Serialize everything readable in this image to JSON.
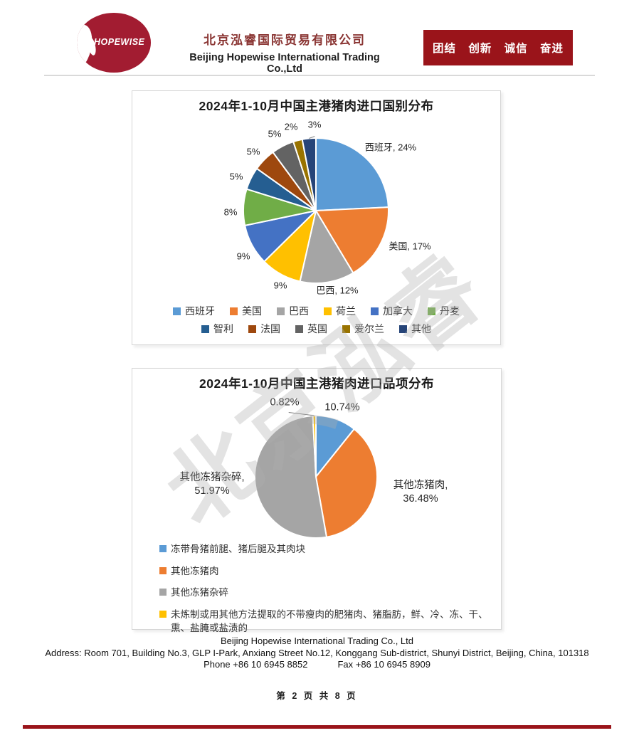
{
  "header": {
    "logo_text": "HOPEWISE",
    "logo_color": "#A21C31",
    "company_name_zh": "北京泓睿国际贸易有限公司",
    "company_name_en": "Beijing Hopewise International Trading Co.,Ltd",
    "slogan": "团结 创新 诚信 奋进",
    "slogan_color": "#9A141A"
  },
  "watermark": {
    "text": "北京泓睿"
  },
  "chart_data": [
    {
      "type": "pie",
      "title": "2024年1-10月中国主港猪肉进口国别分布",
      "unit": "%",
      "legend_position": "bottom",
      "legend_rows": [
        [
          "西班牙",
          "美国",
          "巴西",
          "荷兰",
          "加拿大",
          "丹麦"
        ],
        [
          "智利",
          "法国",
          "英国",
          "爱尔兰",
          "其他"
        ]
      ],
      "slices": [
        {
          "name": "西班牙",
          "value": 24,
          "color": "#5B9BD5",
          "label": "西班牙, 24%",
          "label_pos": [
            105,
            -88
          ]
        },
        {
          "name": "美国",
          "value": 17,
          "color": "#ED7D31",
          "label": "美国, 17%",
          "label_pos": [
            132,
            51
          ]
        },
        {
          "name": "巴西",
          "value": 12,
          "color": "#A5A5A5",
          "label": "巴西, 12%",
          "label_pos": [
            30,
            113
          ]
        },
        {
          "name": "荷兰",
          "value": 9,
          "color": "#FFC000",
          "label": "9%",
          "label_pos": [
            -50,
            106
          ]
        },
        {
          "name": "加拿大",
          "value": 9,
          "color": "#4472C4",
          "label": "9%",
          "label_pos": [
            -102,
            65
          ]
        },
        {
          "name": "丹麦",
          "value": 8,
          "color": "#70AD47",
          "label": "8%",
          "label_pos": [
            -120,
            3
          ]
        },
        {
          "name": "智利",
          "value": 5,
          "color": "#255E91",
          "label": "5%",
          "label_pos": [
            -112,
            -47
          ]
        },
        {
          "name": "法国",
          "value": 5,
          "color": "#9E480E",
          "label": "5%",
          "label_pos": [
            -88,
            -82
          ]
        },
        {
          "name": "英国",
          "value": 5,
          "color": "#636363",
          "label": "5%",
          "label_pos": [
            -58,
            -107
          ]
        },
        {
          "name": "爱尔兰",
          "value": 2,
          "color": "#997300",
          "label": "2%",
          "label_pos": [
            -35,
            -117
          ]
        },
        {
          "name": "其他",
          "value": 3,
          "color": "#264478",
          "label": "3%",
          "label_pos": [
            -2,
            -120
          ],
          "leader": true
        }
      ]
    },
    {
      "type": "pie",
      "title": "2024年1-10月中国主港猪肉进口品项分布",
      "unit": "%",
      "legend_position": "bottom-list",
      "slices": [
        {
          "name": "冻带骨猪前腿、猪后腿及其肉块",
          "value": 10.74,
          "color": "#5B9BD5",
          "label": "10.74%",
          "label_pos": [
            37,
            -97
          ]
        },
        {
          "name": "其他冻猪肉",
          "value": 36.48,
          "color": "#ED7D31",
          "label": "其他冻猪肉,\n36.48%",
          "label_pos": [
            147,
            22
          ]
        },
        {
          "name": "其他冻猪杂碎",
          "value": 51.97,
          "color": "#A5A5A5",
          "label": "其他冻猪杂碎,\n51.97%",
          "label_pos": [
            -146,
            11
          ]
        },
        {
          "name": "未炼制或用其他方法提取的不带瘦肉的肥猪肉、猪脂肪，鲜、冷、冻、干、熏、盐腌或盐渍的",
          "value": 0.82,
          "color": "#FFC000",
          "label": "0.82%",
          "label_pos": [
            -44,
            -104
          ],
          "leader": true
        }
      ]
    }
  ],
  "footer": {
    "company": "Beijing Hopewise International Trading Co., Ltd",
    "address": "Address: Room 701, Building No.3, GLP I-Park, Anxiang Street No.12, Konggang Sub-district, Shunyi District, Beijing, China, 101318",
    "phone": "Phone +86 10 6945 8852",
    "fax": "Fax +86 10 6945 8909",
    "page": "第 2 页 共 8 页"
  }
}
